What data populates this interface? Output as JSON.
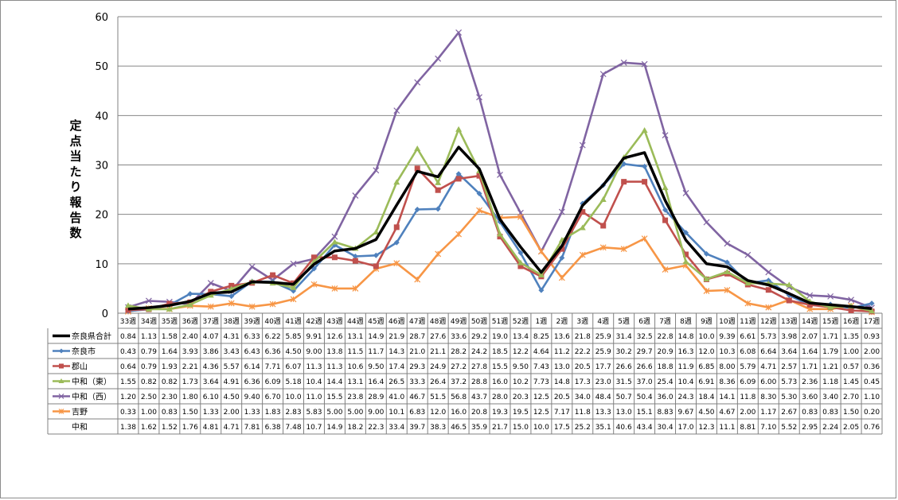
{
  "chart_data": {
    "type": "line",
    "ylabel": "定点当たり報告数",
    "ylim": [
      0,
      60
    ],
    "yticks": [
      0,
      10,
      20,
      30,
      40,
      50,
      60
    ],
    "grid": true,
    "legend": "table-left",
    "categories": [
      "33週",
      "34週",
      "35週",
      "36週",
      "37週",
      "38週",
      "39週",
      "40週",
      "41週",
      "42週",
      "43週",
      "44週",
      "45週",
      "46週",
      "47週",
      "48週",
      "49週",
      "50週",
      "51週",
      "52週",
      "1週",
      "2週",
      "3週",
      "4週",
      "5週",
      "6週",
      "7週",
      "8週",
      "9週",
      "10週",
      "11週",
      "12週",
      "13週",
      "14週",
      "15週",
      "16週",
      "17週"
    ],
    "series": [
      {
        "name": "奈良県合計",
        "color": "#000000",
        "marker": "none",
        "labels": [
          "0.84",
          "1.13",
          "1.58",
          "2.40",
          "4.07",
          "4.31",
          "6.33",
          "6.22",
          "5.85",
          "9.91",
          "12.6",
          "13.1",
          "14.9",
          "21.9",
          "28.7",
          "27.6",
          "33.6",
          "29.2",
          "19.0",
          "13.4",
          "8.25",
          "13.6",
          "21.8",
          "25.9",
          "31.4",
          "32.5",
          "22.8",
          "14.8",
          "10.0",
          "9.39",
          "6.61",
          "5.73",
          "3.98",
          "2.07",
          "1.71",
          "1.35",
          "0.93"
        ]
      },
      {
        "name": "奈良市",
        "color": "#4f81bd",
        "marker": "diamond",
        "labels": [
          "0.43",
          "0.79",
          "1.64",
          "3.93",
          "3.86",
          "3.43",
          "6.43",
          "6.36",
          "4.50",
          "9.00",
          "13.8",
          "11.5",
          "11.7",
          "14.3",
          "21.0",
          "21.1",
          "28.2",
          "24.2",
          "18.5",
          "12.2",
          "4.64",
          "11.2",
          "22.2",
          "25.9",
          "30.2",
          "29.7",
          "20.9",
          "16.3",
          "12.0",
          "10.3",
          "6.08",
          "6.64",
          "3.64",
          "1.64",
          "1.79",
          "1.00",
          "2.00"
        ]
      },
      {
        "name": "郡山",
        "color": "#c0504d",
        "marker": "square",
        "labels": [
          "0.64",
          "0.79",
          "1.93",
          "2.21",
          "4.36",
          "5.57",
          "6.14",
          "7.71",
          "6.07",
          "11.3",
          "11.3",
          "10.6",
          "9.50",
          "17.4",
          "29.3",
          "24.9",
          "27.2",
          "27.8",
          "15.5",
          "9.50",
          "7.43",
          "13.0",
          "20.5",
          "17.7",
          "26.6",
          "26.6",
          "18.8",
          "11.9",
          "6.85",
          "8.00",
          "5.79",
          "4.71",
          "2.57",
          "1.71",
          "1.21",
          "0.57",
          "0.36"
        ]
      },
      {
        "name": "中和（東）",
        "color": "#9bbb59",
        "marker": "triangle",
        "labels": [
          "1.55",
          "0.82",
          "0.82",
          "1.73",
          "3.64",
          "4.91",
          "6.36",
          "6.09",
          "5.18",
          "10.4",
          "14.4",
          "13.1",
          "16.4",
          "26.5",
          "33.3",
          "26.4",
          "37.2",
          "28.8",
          "16.0",
          "10.2",
          "7.73",
          "14.8",
          "17.3",
          "23.0",
          "31.5",
          "37.0",
          "25.4",
          "10.4",
          "6.91",
          "8.36",
          "6.09",
          "6.00",
          "5.73",
          "2.36",
          "1.18",
          "1.45",
          "0.45"
        ]
      },
      {
        "name": "中和（西）",
        "color": "#8064a2",
        "marker": "x",
        "labels": [
          "1.20",
          "2.50",
          "2.30",
          "1.80",
          "6.10",
          "4.50",
          "9.40",
          "6.70",
          "10.0",
          "11.0",
          "15.5",
          "23.8",
          "28.9",
          "41.0",
          "46.7",
          "51.5",
          "56.8",
          "43.7",
          "28.0",
          "20.3",
          "12.5",
          "20.5",
          "34.0",
          "48.4",
          "50.7",
          "50.4",
          "36.0",
          "24.3",
          "18.4",
          "14.1",
          "11.8",
          "8.30",
          "5.30",
          "3.60",
          "3.40",
          "2.70",
          "1.10"
        ]
      },
      {
        "name": "吉野",
        "color": "#f79646",
        "marker": "star",
        "labels": [
          "0.33",
          "1.00",
          "0.83",
          "1.50",
          "1.33",
          "2.00",
          "1.33",
          "1.83",
          "2.83",
          "5.83",
          "5.00",
          "5.00",
          "9.00",
          "10.1",
          "6.83",
          "12.0",
          "16.0",
          "20.8",
          "19.3",
          "19.5",
          "12.5",
          "7.17",
          "11.8",
          "13.3",
          "13.0",
          "15.1",
          "8.83",
          "9.67",
          "4.50",
          "4.67",
          "2.00",
          "1.17",
          "2.67",
          "0.83",
          "0.83",
          "1.50",
          "0.20"
        ]
      },
      {
        "name": "中和",
        "color": "",
        "marker": "none",
        "labels": [
          "1.38",
          "1.62",
          "1.52",
          "1.76",
          "4.81",
          "4.71",
          "7.81",
          "6.38",
          "7.48",
          "10.7",
          "14.9",
          "18.2",
          "22.3",
          "33.4",
          "39.7",
          "38.3",
          "46.5",
          "35.9",
          "21.7",
          "15.0",
          "10.0",
          "17.5",
          "25.2",
          "35.1",
          "40.6",
          "43.4",
          "30.4",
          "17.0",
          "12.3",
          "11.1",
          "8.81",
          "7.10",
          "5.52",
          "2.95",
          "2.24",
          "2.05",
          "0.76"
        ]
      }
    ]
  }
}
